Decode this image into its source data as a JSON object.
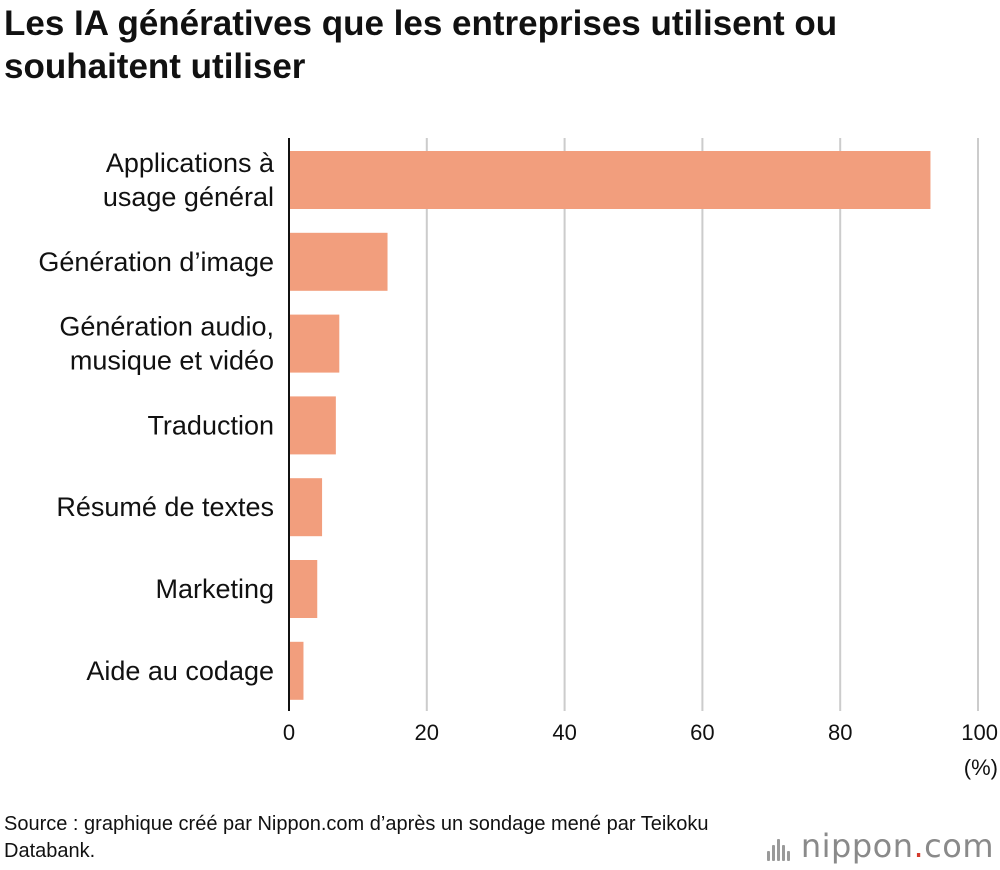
{
  "title": "Les IA génératives que les entreprises utilisent ou souhaitent utiliser",
  "source": "Source : graphique créé par Nippon.com d’après un sondage mené par Teikoku Databank.",
  "brand": {
    "name": "nippon",
    "dot": ".",
    "suffix": "com"
  },
  "colors": {
    "bar": "#f29e7d",
    "grid": "#cccccc",
    "axis": "#111111"
  },
  "chart_data": {
    "type": "bar",
    "orientation": "horizontal",
    "categories": [
      [
        "Applications à",
        "usage général"
      ],
      [
        "Génération d’image"
      ],
      [
        "Génération audio,",
        "musique et vidéo"
      ],
      [
        "Traduction"
      ],
      [
        "Résumé de textes"
      ],
      [
        "Marketing"
      ],
      [
        "Aide au codage"
      ]
    ],
    "values": [
      93.1,
      14.3,
      7.3,
      6.8,
      4.8,
      4.1,
      2.1
    ],
    "xlim": [
      0,
      100
    ],
    "xticks": [
      0,
      20,
      40,
      60,
      80,
      100
    ],
    "xunit": "(%)",
    "grid": true
  }
}
